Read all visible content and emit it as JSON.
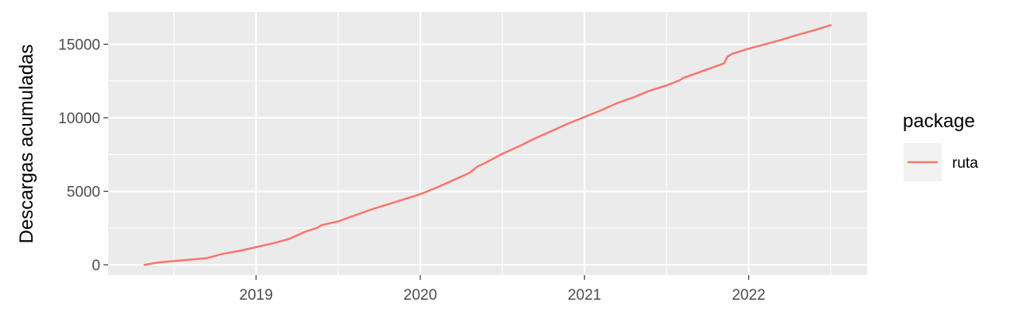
{
  "chart_data": {
    "type": "line",
    "title": "",
    "xlabel": "",
    "ylabel": "Descargas acumuladas",
    "xlim": [
      2018.1,
      2022.72
    ],
    "ylim": [
      -700,
      17200
    ],
    "x_major_ticks": [
      2019,
      2020,
      2021,
      2022
    ],
    "x_tick_labels": [
      "2019",
      "2020",
      "2021",
      "2022"
    ],
    "y_major_ticks": [
      0,
      5000,
      10000,
      15000
    ],
    "y_tick_labels": [
      "0",
      "5000",
      "10000",
      "15000"
    ],
    "grid": true,
    "legend": {
      "title": "package",
      "position": "right",
      "entries": [
        "ruta"
      ]
    },
    "colors": {
      "panel_background": "#ebebeb",
      "grid": "#ffffff",
      "series": "#f8766d",
      "legend_key_background": "#f2f2f2"
    },
    "series": [
      {
        "name": "ruta",
        "x": [
          2018.32,
          2018.4,
          2018.5,
          2018.6,
          2018.7,
          2018.8,
          2018.9,
          2019.0,
          2019.1,
          2019.2,
          2019.3,
          2019.37,
          2019.4,
          2019.5,
          2019.6,
          2019.7,
          2019.8,
          2019.9,
          2020.0,
          2020.1,
          2020.2,
          2020.3,
          2020.35,
          2020.4,
          2020.5,
          2020.6,
          2020.7,
          2020.8,
          2020.9,
          2021.0,
          2021.1,
          2021.2,
          2021.3,
          2021.4,
          2021.5,
          2021.58,
          2021.6,
          2021.7,
          2021.8,
          2021.85,
          2021.87,
          2021.9,
          2022.0,
          2022.1,
          2022.2,
          2022.3,
          2022.4,
          2022.5
        ],
        "y": [
          0,
          150,
          250,
          350,
          450,
          750,
          950,
          1200,
          1450,
          1750,
          2250,
          2500,
          2700,
          2950,
          3350,
          3750,
          4100,
          4450,
          4800,
          5250,
          5750,
          6250,
          6700,
          6950,
          7550,
          8050,
          8600,
          9100,
          9600,
          10050,
          10500,
          11000,
          11400,
          11850,
          12200,
          12550,
          12700,
          13100,
          13500,
          13700,
          14150,
          14350,
          14700,
          15000,
          15300,
          15650,
          15950,
          16300
        ]
      }
    ]
  }
}
